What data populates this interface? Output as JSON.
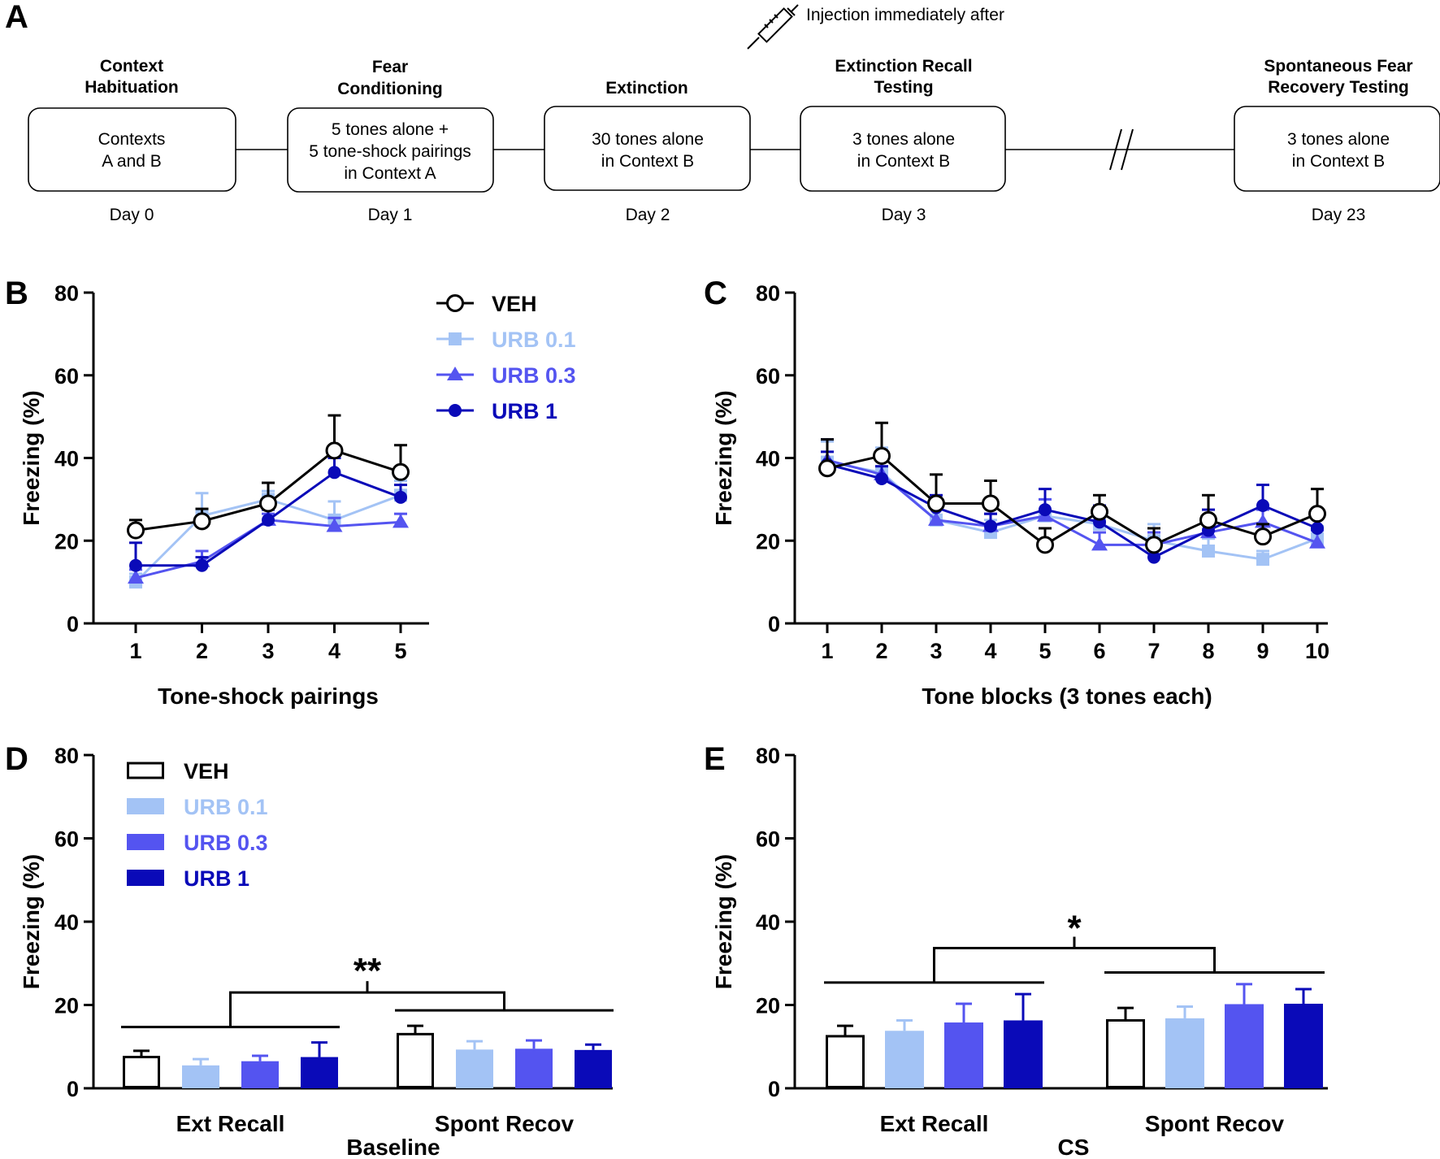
{
  "panel_labels": {
    "a": "A",
    "b": "B",
    "c": "C",
    "d": "D",
    "e": "E"
  },
  "timeline": {
    "injection_label": "Injection immediately after",
    "stages": [
      {
        "title": [
          "Context",
          "Habituation"
        ],
        "box": [
          "Contexts",
          "A and B"
        ],
        "day": "Day 0"
      },
      {
        "title": [
          "Fear",
          "Conditioning"
        ],
        "box": [
          "5 tones alone +",
          "5 tone-shock pairings",
          "in Context A"
        ],
        "day": "Day 1"
      },
      {
        "title": [
          "Extinction"
        ],
        "box": [
          "30 tones alone",
          "in Context B"
        ],
        "day": "Day 2"
      },
      {
        "title": [
          "Extinction Recall",
          "Testing"
        ],
        "box": [
          "3 tones alone",
          "in Context B"
        ],
        "day": "Day 3"
      },
      {
        "title": [
          "Spontaneous Fear",
          "Recovery Testing"
        ],
        "box": [
          "3 tones alone",
          "in Context B"
        ],
        "day": "Day 23"
      }
    ]
  },
  "colors": {
    "veh": "#000000",
    "urb01": "#a3c3f5",
    "urb03": "#5454f0",
    "urb1": "#0a0ab8"
  },
  "chart_data": [
    {
      "id": "B",
      "type": "line",
      "title": "",
      "xlabel": "Tone-shock pairings",
      "ylabel": "Freezing (%)",
      "ylim": [
        0,
        80
      ],
      "yticks": [
        0,
        20,
        40,
        60,
        80
      ],
      "x": [
        1,
        2,
        3,
        4,
        5
      ],
      "legend": true,
      "legend_position": "top-right",
      "series": [
        {
          "key": "urb01",
          "name": "URB 0.1",
          "marker": "square",
          "values": [
            10,
            26,
            30,
            25,
            31
          ],
          "errors": [
            2,
            5.5,
            2,
            4.5,
            3.5
          ]
        },
        {
          "key": "urb03",
          "name": "URB 0.3",
          "marker": "triangle",
          "values": [
            11,
            15,
            25,
            23.5,
            24.5
          ],
          "errors": [
            2,
            2.5,
            1.5,
            2,
            2
          ]
        },
        {
          "key": "urb1",
          "name": "URB 1",
          "marker": "circle",
          "values": [
            14,
            14,
            25,
            36.5,
            30.5
          ],
          "errors": [
            5.5,
            2,
            2.5,
            3.5,
            3
          ]
        },
        {
          "key": "veh",
          "name": "VEH",
          "marker": "open-circle",
          "values": [
            22.5,
            24.7,
            29,
            41.8,
            36.6
          ],
          "errors": [
            2.5,
            3,
            5,
            8.5,
            6.5
          ]
        }
      ]
    },
    {
      "id": "C",
      "type": "line",
      "title": "",
      "xlabel": "Tone blocks (3 tones each)",
      "ylabel": "Freezing (%)",
      "ylim": [
        0,
        80
      ],
      "yticks": [
        0,
        20,
        40,
        60,
        80
      ],
      "x": [
        1,
        2,
        3,
        4,
        5,
        6,
        7,
        8,
        9,
        10
      ],
      "legend": false,
      "series": [
        {
          "key": "urb01",
          "name": "URB 0.1",
          "marker": "square",
          "values": [
            39,
            36.5,
            25,
            22,
            26,
            24,
            20,
            17.5,
            15.5,
            20.5
          ],
          "errors": [
            5,
            6,
            5,
            3,
            4,
            3,
            4,
            3,
            2,
            3
          ]
        },
        {
          "key": "urb03",
          "name": "URB 0.3",
          "marker": "triangle",
          "values": [
            39.5,
            36,
            25,
            23.5,
            26,
            19,
            19,
            22,
            24.5,
            19.5
          ],
          "errors": [
            5,
            4,
            3,
            3,
            4,
            3,
            3,
            4,
            3,
            3
          ]
        },
        {
          "key": "urb1",
          "name": "URB 1",
          "marker": "circle",
          "values": [
            38.5,
            35,
            28,
            23.5,
            27.5,
            24.5,
            16,
            22.5,
            28.5,
            23
          ],
          "errors": [
            3,
            3,
            3,
            3,
            5,
            4,
            3,
            5,
            5,
            4
          ]
        },
        {
          "key": "veh",
          "name": "VEH",
          "marker": "open-circle",
          "values": [
            37.5,
            40.5,
            29,
            29,
            19,
            27,
            19,
            25,
            21,
            26.5
          ],
          "errors": [
            7,
            8,
            7,
            5.5,
            4,
            4,
            4,
            6,
            3,
            6
          ]
        }
      ]
    },
    {
      "id": "D",
      "type": "bar",
      "title": "",
      "xlabel": "Baseline",
      "ylabel": "Freezing (%)",
      "ylim": [
        0,
        80
      ],
      "yticks": [
        0,
        20,
        40,
        60,
        80
      ],
      "categories": [
        "Ext Recall",
        "Spont Recov"
      ],
      "legend": true,
      "legend_position": "top-left",
      "series": [
        {
          "key": "veh",
          "name": "VEH",
          "values": [
            7.5,
            13
          ],
          "errors": [
            1.5,
            2
          ]
        },
        {
          "key": "urb01",
          "name": "URB 0.1",
          "values": [
            5.5,
            9.3
          ],
          "errors": [
            1.5,
            2
          ]
        },
        {
          "key": "urb03",
          "name": "URB 0.3",
          "values": [
            6.5,
            9.5
          ],
          "errors": [
            1.3,
            2
          ]
        },
        {
          "key": "urb1",
          "name": "URB 1",
          "values": [
            7.5,
            9.2
          ],
          "errors": [
            3.5,
            1.3
          ]
        }
      ],
      "annotation": "**"
    },
    {
      "id": "E",
      "type": "bar",
      "title": "",
      "xlabel": "CS",
      "ylabel": "Freezing (%)",
      "ylim": [
        0,
        80
      ],
      "yticks": [
        0,
        20,
        40,
        60,
        80
      ],
      "categories": [
        "Ext Recall",
        "Spont Recov"
      ],
      "legend": false,
      "series": [
        {
          "key": "veh",
          "name": "VEH",
          "values": [
            12.5,
            16.3
          ],
          "errors": [
            2.5,
            3
          ]
        },
        {
          "key": "urb01",
          "name": "URB 0.1",
          "values": [
            13.8,
            16.8
          ],
          "errors": [
            2.5,
            2.8
          ]
        },
        {
          "key": "urb03",
          "name": "URB 0.3",
          "values": [
            15.8,
            20.2
          ],
          "errors": [
            4.5,
            4.8
          ]
        },
        {
          "key": "urb1",
          "name": "URB 1",
          "values": [
            16.3,
            20.3
          ],
          "errors": [
            6.3,
            3.5
          ]
        }
      ],
      "annotation": "*"
    }
  ]
}
